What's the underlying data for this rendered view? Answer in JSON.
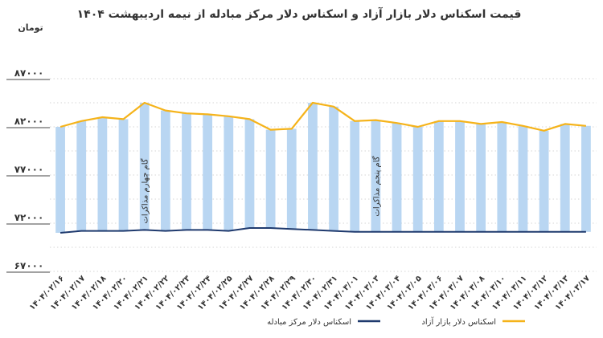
{
  "chart_data": {
    "type": "bar",
    "title": "قیمت اسکناس دلار بازار آزاد و اسکناس دلار مرکز مبادله از نیمه اردیبهشت ۱۴۰۴",
    "unit_label": "تومان",
    "y_tick_labels": [
      "۶۷۰۰۰",
      "۷۲۰۰۰",
      "۷۷۰۰۰",
      "۸۲۰۰۰",
      "۸۷۰۰۰"
    ],
    "y_tick_values": [
      67000,
      72000,
      77000,
      82000,
      87000
    ],
    "ylim": [
      67000,
      90000
    ],
    "grid": true,
    "categories": [
      "۱۴۰۴/۰۲/۱۶",
      "۱۴۰۴/۰۲/۱۷",
      "۱۴۰۴/۰۲/۱۸",
      "۱۴۰۴/۰۲/۲۰",
      "۱۴۰۴/۰۲/۲۱",
      "۱۴۰۴/۰۲/۲۲",
      "۱۴۰۴/۰۲/۲۳",
      "۱۴۰۴/۰۲/۲۴",
      "۱۴۰۴/۰۲/۲۵",
      "۱۴۰۴/۰۲/۲۷",
      "۱۴۰۴/۰۲/۲۸",
      "۱۴۰۴/۰۲/۲۹",
      "۱۴۰۴/۰۲/۳۰",
      "۱۴۰۴/۰۲/۳۱",
      "۱۴۰۴/۰۳/۰۱",
      "۱۴۰۴/۰۳/۰۳",
      "۱۴۰۴/۰۳/۰۴",
      "۱۴۰۴/۰۳/۰۵",
      "۱۴۰۴/۰۳/۰۶",
      "۱۴۰۴/۰۳/۰۷",
      "۱۴۰۴/۰۳/۰۸",
      "۱۴۰۴/۰۳/۱۰",
      "۱۴۰۴/۰۳/۱۱",
      "۱۴۰۴/۰۳/۱۲",
      "۱۴۰۴/۰۳/۱۳",
      "۱۴۰۴/۰۳/۱۷"
    ],
    "series": [
      {
        "name": "اسکناس دلار بازار آزاد",
        "color": "#F5B31A",
        "bar_color": "#B9D6F2",
        "values": [
          82000,
          82600,
          83000,
          82800,
          84500,
          83700,
          83400,
          83300,
          83100,
          82800,
          81700,
          81800,
          84500,
          84100,
          82600,
          82700,
          82400,
          82000,
          82600,
          82600,
          82300,
          82500,
          82100,
          81600,
          82300,
          82100
        ]
      },
      {
        "name": "اسکناس دلار مرکز مبادله",
        "color": "#1F3A6E",
        "values": [
          71000,
          71200,
          71200,
          71200,
          71300,
          71200,
          71300,
          71300,
          71200,
          71500,
          71500,
          71400,
          71300,
          71200,
          71100,
          71100,
          71100,
          71100,
          71100,
          71100,
          71100,
          71100,
          71100,
          71100,
          71100,
          71100
        ]
      }
    ],
    "annotations": [
      "گام چهارم مذاکرات",
      "گام پنجم مذاکرات"
    ],
    "legend_position": "bottom"
  }
}
